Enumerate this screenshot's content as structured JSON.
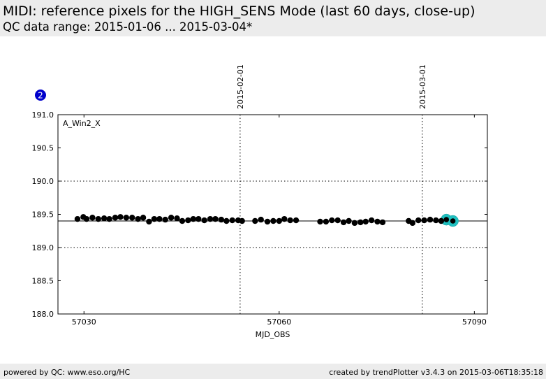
{
  "header": {
    "title": "MIDI: reference pixels for the HIGH_SENS Mode (last 60 days, close-up)",
    "subtitle": "QC data range: 2015-01-06 ... 2015-03-04*"
  },
  "badge": {
    "label": "2",
    "color": "#0000cc"
  },
  "footer": {
    "left": "powered by QC: www.eso.org/HC",
    "right": "created by trendPlotter v3.4.3 on 2015-03-06T18:35:18"
  },
  "colors": {
    "points": "#000000",
    "highlight": "#20c0c0",
    "reference": "#000000",
    "grid": "#000000"
  },
  "chart_data": {
    "type": "scatter",
    "panel_label": "A_Win2_X",
    "xlabel": "MJD_OBS",
    "ylabel": "",
    "xlim": [
      57026,
      57092
    ],
    "ylim": [
      188.0,
      191.0
    ],
    "x_ticks": [
      57030,
      57060,
      57090
    ],
    "y_ticks": [
      188.0,
      188.5,
      189.0,
      189.5,
      190.0,
      190.5,
      191.0
    ],
    "y_tick_labels": [
      "188.0",
      "188.5",
      "189.0",
      "189.5",
      "190.0",
      "190.5",
      "191.0"
    ],
    "dotted_gridlines_y": [
      189.0,
      190.0
    ],
    "reference_line_y": 189.4,
    "date_markers": [
      {
        "x": 57054,
        "label": "2015-02-01"
      },
      {
        "x": 57082,
        "label": "2015-03-01"
      }
    ],
    "points": {
      "x": [
        57029.0,
        57029.9,
        57030.4,
        57031.3,
        57032.2,
        57033.1,
        57033.9,
        57034.8,
        57035.6,
        57036.5,
        57037.4,
        57038.3,
        57039.1,
        57040.0,
        57040.8,
        57041.6,
        57042.5,
        57043.4,
        57044.3,
        57045.1,
        57046.0,
        57046.8,
        57047.6,
        57048.5,
        57049.4,
        57050.2,
        57051.1,
        57051.9,
        57052.8,
        57053.7,
        57054.3,
        57056.3,
        57057.2,
        57058.2,
        57059.1,
        57060.0,
        57060.8,
        57061.7,
        57062.6,
        57066.3,
        57067.2,
        57068.1,
        57069.0,
        57069.9,
        57070.7,
        57071.6,
        57072.5,
        57073.3,
        57074.2,
        57075.1,
        57075.9,
        57079.9,
        57080.5,
        57081.4,
        57082.3,
        57083.2,
        57084.1,
        57084.9
      ],
      "y": [
        189.43,
        189.46,
        189.43,
        189.45,
        189.43,
        189.44,
        189.43,
        189.45,
        189.46,
        189.45,
        189.45,
        189.43,
        189.45,
        189.39,
        189.43,
        189.43,
        189.42,
        189.45,
        189.44,
        189.4,
        189.41,
        189.43,
        189.43,
        189.41,
        189.43,
        189.43,
        189.42,
        189.4,
        189.41,
        189.41,
        189.4,
        189.4,
        189.42,
        189.39,
        189.4,
        189.4,
        189.43,
        189.41,
        189.41,
        189.39,
        189.39,
        189.41,
        189.41,
        189.38,
        189.4,
        189.37,
        189.38,
        189.39,
        189.41,
        189.39,
        189.38,
        189.4,
        189.37,
        189.41,
        189.41,
        189.42,
        189.41,
        189.4
      ]
    },
    "highlight_points": {
      "x": [
        57085.7,
        57086.7
      ],
      "y": [
        189.42,
        189.4
      ]
    }
  }
}
